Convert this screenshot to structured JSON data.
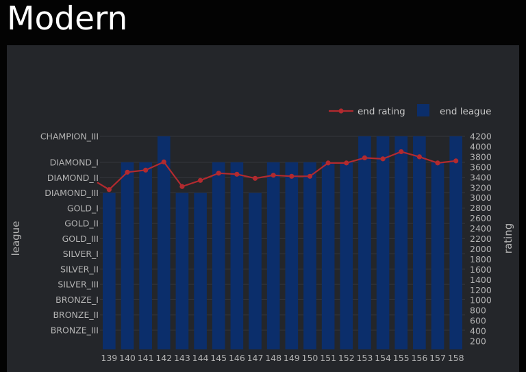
{
  "page": {
    "title": "Modern"
  },
  "chart_data": {
    "type": "bar",
    "categories": [
      "139",
      "140",
      "141",
      "142",
      "143",
      "144",
      "145",
      "146",
      "147",
      "148",
      "149",
      "150",
      "151",
      "152",
      "153",
      "154",
      "155",
      "156",
      "157",
      "158"
    ],
    "series": [
      {
        "name": "end league",
        "type": "bar",
        "axis": "left",
        "values": [
          "DIAMOND_III",
          "DIAMOND_I",
          "DIAMOND_I",
          "CHAMPION_III",
          "DIAMOND_III",
          "DIAMOND_III",
          "DIAMOND_I",
          "DIAMOND_I",
          "DIAMOND_III",
          "DIAMOND_I",
          "DIAMOND_I",
          "DIAMOND_I",
          "DIAMOND_I",
          "DIAMOND_I",
          "CHAMPION_III",
          "CHAMPION_III",
          "CHAMPION_III",
          "CHAMPION_III",
          "DIAMOND_I",
          "CHAMPION_III"
        ],
        "color": "#0b2e6b"
      },
      {
        "name": "end rating",
        "type": "line",
        "axis": "right",
        "values": [
          3160,
          3500,
          3540,
          3700,
          3220,
          3340,
          3480,
          3460,
          3380,
          3440,
          3420,
          3420,
          3680,
          3680,
          3780,
          3760,
          3900,
          3800,
          3680,
          3720
        ],
        "color": "#b22a2f"
      }
    ],
    "y_left": {
      "label": "league",
      "ticks": [
        "CHAMPION_III",
        "DIAMOND_I",
        "DIAMOND_II",
        "DIAMOND_III",
        "GOLD_I",
        "GOLD_II",
        "GOLD_III",
        "SILVER_I",
        "SILVER_II",
        "SILVER_III",
        "BRONZE_I",
        "BRONZE_II",
        "BRONZE_III"
      ]
    },
    "y_right": {
      "label": "rating",
      "ticks": [
        4200,
        4000,
        3800,
        3600,
        3400,
        3200,
        3000,
        2800,
        2600,
        2400,
        2200,
        2000,
        1800,
        1600,
        1400,
        1200,
        1000,
        800,
        600,
        400,
        200
      ]
    },
    "xlabel": "",
    "legend": {
      "position": "top-right"
    },
    "grid": true
  }
}
